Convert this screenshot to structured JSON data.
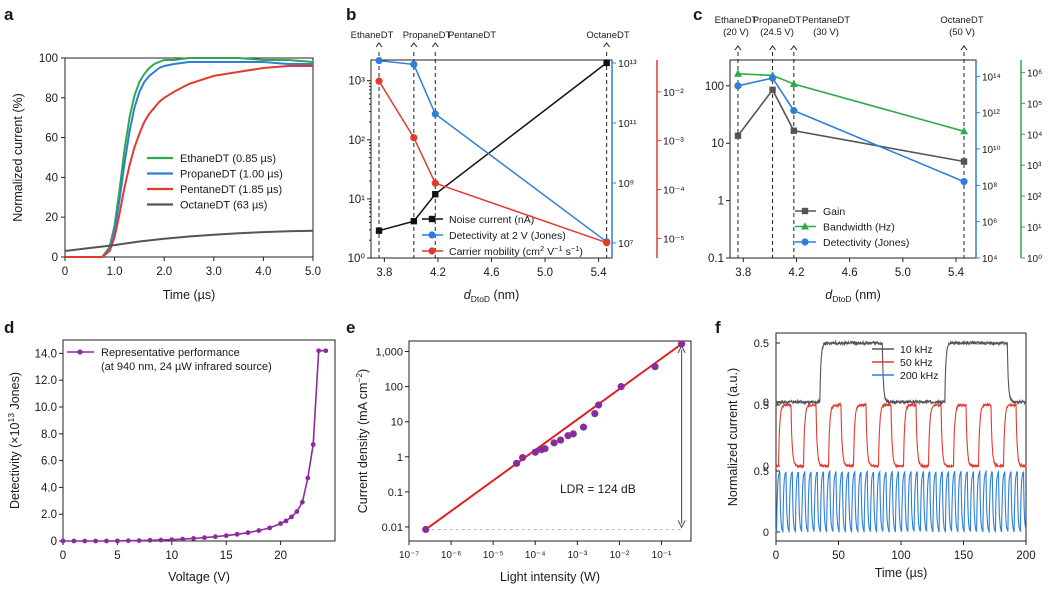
{
  "colors": {
    "green": "#2eaa4a",
    "blue": "#2f7fd8",
    "red": "#e23a2e",
    "gray": "#555555",
    "black": "#111111",
    "purple": "#8a2c9c",
    "dred": "#e02020"
  },
  "chart_data": [
    {
      "panel": "a",
      "type": "line",
      "ylabel": "Normalized current (%)",
      "xlabel": "Time (µs)",
      "xlim": [
        0,
        5
      ],
      "ylim": [
        0,
        100
      ],
      "xticks": [
        "0",
        "1.0",
        "2.0",
        "3.0",
        "4.0",
        "5.0"
      ],
      "yticks": [
        "0",
        "20",
        "40",
        "60",
        "80",
        "100"
      ],
      "legend_position": "center-right",
      "series": [
        {
          "name": "EthaneDT (0.85 µs)",
          "color": "#2eaa4a",
          "x": [
            0,
            0.75,
            0.9,
            1.0,
            1.1,
            1.2,
            1.3,
            1.4,
            1.5,
            1.6,
            1.7,
            1.8,
            1.9,
            2.0,
            2.2,
            2.5,
            3,
            3.5,
            4,
            4.5,
            5
          ],
          "y": [
            0,
            0,
            5,
            16,
            34,
            54,
            70,
            81,
            88,
            92,
            95,
            97,
            98,
            99,
            99,
            100,
            100,
            100,
            99,
            99,
            98
          ]
        },
        {
          "name": "PropaneDT (1.00 µs)",
          "color": "#2f7fd8",
          "x": [
            0,
            0.75,
            0.9,
            1.0,
            1.1,
            1.2,
            1.3,
            1.4,
            1.5,
            1.6,
            1.7,
            1.8,
            1.9,
            2.0,
            2.2,
            2.5,
            3,
            3.5,
            4,
            4.5,
            5
          ],
          "y": [
            0,
            0,
            4,
            13,
            29,
            47,
            63,
            75,
            83,
            88,
            91,
            93,
            95,
            96,
            97,
            98,
            98,
            98,
            98,
            97,
            97
          ]
        },
        {
          "name": "PentaneDT (1.85 µs)",
          "color": "#e23a2e",
          "x": [
            0,
            0.75,
            0.9,
            1.0,
            1.1,
            1.2,
            1.3,
            1.4,
            1.5,
            1.6,
            1.7,
            1.8,
            1.9,
            2.0,
            2.2,
            2.5,
            3,
            3.5,
            4,
            4.5,
            5
          ],
          "y": [
            0,
            0,
            3,
            10,
            22,
            35,
            46,
            55,
            62,
            68,
            72,
            75,
            78,
            80,
            83,
            87,
            91,
            93,
            95,
            96,
            96
          ]
        },
        {
          "name": "OctaneDT (63 µs)",
          "color": "#555555",
          "x": [
            0,
            0.5,
            1.0,
            1.5,
            2.0,
            2.5,
            3.0,
            3.5,
            4.0,
            4.5,
            5.0
          ],
          "y": [
            3,
            4.5,
            6,
            7.8,
            9.2,
            10.3,
            11.2,
            11.9,
            12.5,
            12.9,
            13.2
          ]
        }
      ]
    },
    {
      "panel": "b",
      "type": "line",
      "xlabel_main": "d",
      "xlabel_sub": "DtoD",
      "xlabel_unit": " (nm)",
      "xlim": [
        3.7,
        5.5
      ],
      "xticks": [
        "3.8",
        "4.2",
        "4.6",
        "5.0",
        "5.4"
      ],
      "left_axis": {
        "label": "Noise current (nA)",
        "ticks": [
          "10⁰",
          "10¹",
          "10²",
          "10³"
        ],
        "ylim_log": [
          0,
          3.35
        ]
      },
      "right_axis1": {
        "label": "Detectivity at 2 V (Jones)",
        "ticks": [
          "10⁷",
          "10⁹",
          "10¹¹",
          "10¹³"
        ],
        "ylim_log": [
          6.5,
          13.1
        ]
      },
      "right_axis2": {
        "label": "Carrier mobility",
        "ticks": [
          "10⁻⁵",
          "10⁻⁴",
          "10⁻³",
          "10⁻²"
        ],
        "ylim_log": [
          -5.4,
          -1.35
        ]
      },
      "top_labels": [
        "EthaneDT",
        "PropaneDT",
        "PentaneDT",
        "OctaneDT"
      ],
      "x": [
        3.76,
        4.02,
        4.18,
        5.46
      ],
      "series": [
        {
          "name": "Noise current (nA)",
          "color": "#111111",
          "axis": "left",
          "y": [
            2.9,
            4.2,
            12,
            2000
          ]
        },
        {
          "name": "Detectivity at 2 V (Jones)",
          "color": "#2f7fd8",
          "axis": "right1",
          "y": [
            12000000000000.0,
            9000000000000.0,
            200000000000.0,
            11000000.0
          ]
        },
        {
          "name": "Carrier mobility",
          "legend_unit": " (cm",
          "legend_sup1": "2",
          "legend_mid": " V",
          "legend_sup2": "−1",
          "legend_end": " s",
          "legend_sup3": "−1",
          "legend_close": ")",
          "color": "#e23a2e",
          "axis": "right2",
          "y": [
            0.0165,
            0.00115,
            0.000135,
            8.2e-06
          ]
        }
      ]
    },
    {
      "panel": "c",
      "type": "line",
      "xlabel_main": "d",
      "xlabel_sub": "DtoD",
      "xlabel_unit": " (nm)",
      "xlim": [
        3.7,
        5.55
      ],
      "xticks": [
        "3.8",
        "4.2",
        "4.6",
        "5.0",
        "5.4"
      ],
      "left_axis": {
        "label": "Gain",
        "ticks": [
          "0.1",
          "1",
          "10",
          "100"
        ],
        "ylim_log": [
          -1,
          2.45
        ]
      },
      "right_axis1": {
        "label": "Detectivity (Jones)",
        "ticks": [
          "10⁴",
          "10⁶",
          "10⁸",
          "10¹⁰",
          "10¹²",
          "10¹⁴"
        ],
        "ylim_log": [
          4,
          14.9
        ]
      },
      "right_axis2": {
        "label": "Bandwidth (Hz)",
        "ticks": [
          "10⁰",
          "10¹",
          "10²",
          "10³",
          "10⁴",
          "10⁵",
          "10⁶"
        ],
        "ylim_log": [
          0,
          6.4
        ]
      },
      "top_labels": [
        [
          "EthaneDT",
          "(20 V)"
        ],
        [
          "PropaneDT",
          "(24.5 V)"
        ],
        [
          "PentaneDT",
          "(30 V)"
        ],
        [
          "OctaneDT",
          "(50 V)"
        ]
      ],
      "x": [
        3.76,
        4.02,
        4.18,
        5.46
      ],
      "series": [
        {
          "name": "Gain",
          "color": "#555555",
          "axis": "left",
          "y": [
            13.5,
            85,
            16.5,
            4.8
          ]
        },
        {
          "name": "Bandwidth (Hz)",
          "color": "#2eaa4a",
          "axis": "right2",
          "y": [
            900000,
            800000,
            420000,
            12500
          ]
        },
        {
          "name": "Detectivity (Jones)",
          "color": "#2f7fd8",
          "axis": "right1",
          "y": [
            30000000000000.0,
            80000000000000.0,
            1300000000000.0,
            160000000.0
          ]
        }
      ]
    },
    {
      "panel": "d",
      "type": "line",
      "ylabel_main": "Detectivity (×10",
      "ylabel_sup": "13",
      "ylabel_end": " Jones)",
      "xlabel": "Voltage (V)",
      "xlim": [
        0,
        25
      ],
      "ylim": [
        0,
        15
      ],
      "xticks": [
        "0",
        "5",
        "10",
        "15",
        "20"
      ],
      "yticks": [
        "0",
        "2.0",
        "4.0",
        "6.0",
        "8.0",
        "10.0",
        "12.0",
        "14.0"
      ],
      "legend": [
        "Representative performance",
        "(at 940 nm, 24 µW infrared source)"
      ],
      "series": [
        {
          "name": "Representative performance",
          "color": "#8a2c9c",
          "x": [
            0,
            1,
            2,
            3,
            4,
            5,
            6,
            7,
            8,
            9,
            10,
            11,
            12,
            13,
            14,
            15,
            16,
            17,
            18,
            19,
            20,
            20.5,
            21,
            21.5,
            22,
            22.5,
            23,
            23.5,
            24
          ],
          "y": [
            0,
            0,
            0,
            0,
            0,
            0.01,
            0.02,
            0.03,
            0.05,
            0.07,
            0.1,
            0.14,
            0.19,
            0.25,
            0.32,
            0.4,
            0.5,
            0.62,
            0.78,
            0.98,
            1.3,
            1.5,
            1.8,
            2.2,
            2.9,
            4.7,
            7.2,
            14.2,
            14.2
          ]
        }
      ]
    },
    {
      "panel": "e",
      "type": "scatter",
      "ylabel_main": "Current density (mA cm",
      "ylabel_sup": "−2",
      "ylabel_end": ")",
      "xlabel": "Light intensity (W)",
      "xlim_log": [
        -7,
        -0.3
      ],
      "ylim_log": [
        -2.4,
        3.3
      ],
      "xticks": [
        "10⁻⁷",
        "10⁻⁶",
        "10⁻⁵",
        "10⁻⁴",
        "10⁻³",
        "10⁻²",
        "10⁻¹"
      ],
      "yticks": [
        "0.01",
        "0.1",
        "1",
        "10",
        "100",
        "1,000"
      ],
      "annotation": "LDR = 124 dB",
      "fit_line": {
        "x": [
          2.5e-07,
          0.3
        ],
        "y": [
          0.0085,
          1650
        ]
      },
      "series": [
        {
          "name": "data",
          "color": "#8a2c9c",
          "x": [
            2.5e-07,
            3.6e-05,
            5e-05,
            0.0001,
            0.00014,
            0.00017,
            0.00028,
            0.0004,
            0.0006,
            0.0008,
            0.0014,
            0.0026,
            0.0032,
            0.011,
            0.07,
            0.3
          ],
          "y": [
            0.0085,
            0.65,
            0.95,
            1.35,
            1.6,
            1.7,
            2.5,
            3,
            4,
            4.5,
            7,
            17,
            30,
            100,
            370,
            1650
          ]
        }
      ]
    },
    {
      "panel": "f",
      "type": "line",
      "ylabel": "Normalized current (a.u.)",
      "xlabel": "Time (µs)",
      "xlim": [
        0,
        200
      ],
      "xticks": [
        "0",
        "50",
        "100",
        "150",
        "200"
      ],
      "ytick_labels": {
        "top": [
          "0.5",
          "0"
        ],
        "mid": [
          "0.5",
          "0"
        ],
        "bottom": [
          "0.5",
          "0"
        ]
      },
      "legend": [
        "10 kHz",
        "50 kHz",
        "200 kHz"
      ],
      "series": [
        {
          "name": "10 kHz",
          "color": "#555555",
          "frequency_khz": 10
        },
        {
          "name": "50 kHz",
          "color": "#e23a2e",
          "frequency_khz": 50
        },
        {
          "name": "200 kHz",
          "color": "#2f7fd8",
          "frequency_khz": 200
        }
      ]
    }
  ]
}
